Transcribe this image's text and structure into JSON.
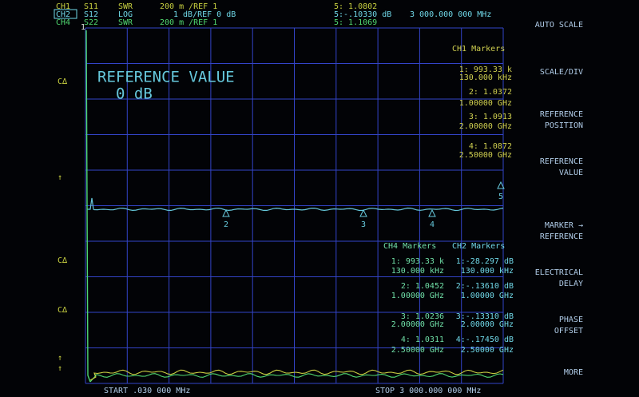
{
  "header": {
    "rows": [
      [
        "CH1",
        "S11",
        "SWR",
        "200 m /REF 1",
        "5: 1.0802"
      ],
      [
        "CH2",
        "S12",
        "LOG",
        "1 dB/REF 0 dB",
        "5:-.10330 dB",
        "3 000.000 000 MHz"
      ],
      [
        "CH4",
        "S22",
        "SWR",
        "200 m /REF 1",
        "5: 1.1069"
      ]
    ]
  },
  "softkeys": [
    [
      "AUTO SCALE"
    ],
    [
      "SCALE/DIV"
    ],
    [
      "REFERENCE",
      "POSITION"
    ],
    [
      "REFERENCE",
      "VALUE"
    ],
    [
      "MARKER →",
      "REFERENCE"
    ],
    [
      "ELECTRICAL",
      "DELAY"
    ],
    [
      "PHASE",
      "OFFSET"
    ],
    [
      "MORE"
    ]
  ],
  "side_indicators": [
    "C∆",
    "↑",
    "C∆",
    "C∆",
    "↑",
    "↑"
  ],
  "overlay": {
    "title": "REFERENCE VALUE",
    "value": "0 dB"
  },
  "ch1_markers": {
    "title": "CH1 Markers",
    "entries": [
      [
        "1: 993.33 k",
        "130.000 kHz"
      ],
      [
        "2: 1.0372",
        "1.00000 GHz"
      ],
      [
        "3: 1.0913",
        "2.00000 GHz"
      ],
      [
        "4: 1.0872",
        "2.50000 GHz"
      ]
    ]
  },
  "ch4_markers": {
    "title": "CH4 Markers",
    "entries": [
      [
        "1: 993.33 k",
        "130.000 kHz"
      ],
      [
        "2: 1.0452",
        "1.00000 GHz"
      ],
      [
        "3: 1.0236",
        "2.00000 GHz"
      ],
      [
        "4: 1.0311",
        "2.50000 GHz"
      ]
    ]
  },
  "ch2_markers": {
    "title": "CH2 Markers",
    "entries": [
      [
        "1:-28.297 dB",
        "130.000 kHz"
      ],
      [
        "2:-.13610 dB",
        "1.00000 GHz"
      ],
      [
        "3:-.13310 dB",
        "2.00000 GHz"
      ],
      [
        "4:-.17450 dB",
        "2.50000 GHz"
      ]
    ]
  },
  "trace_labels": [
    "1",
    "2",
    "3",
    "4",
    "5"
  ],
  "footer": {
    "start": "START .030 000 MHz",
    "stop": "STOP 3 000.000 000 MHz"
  }
}
